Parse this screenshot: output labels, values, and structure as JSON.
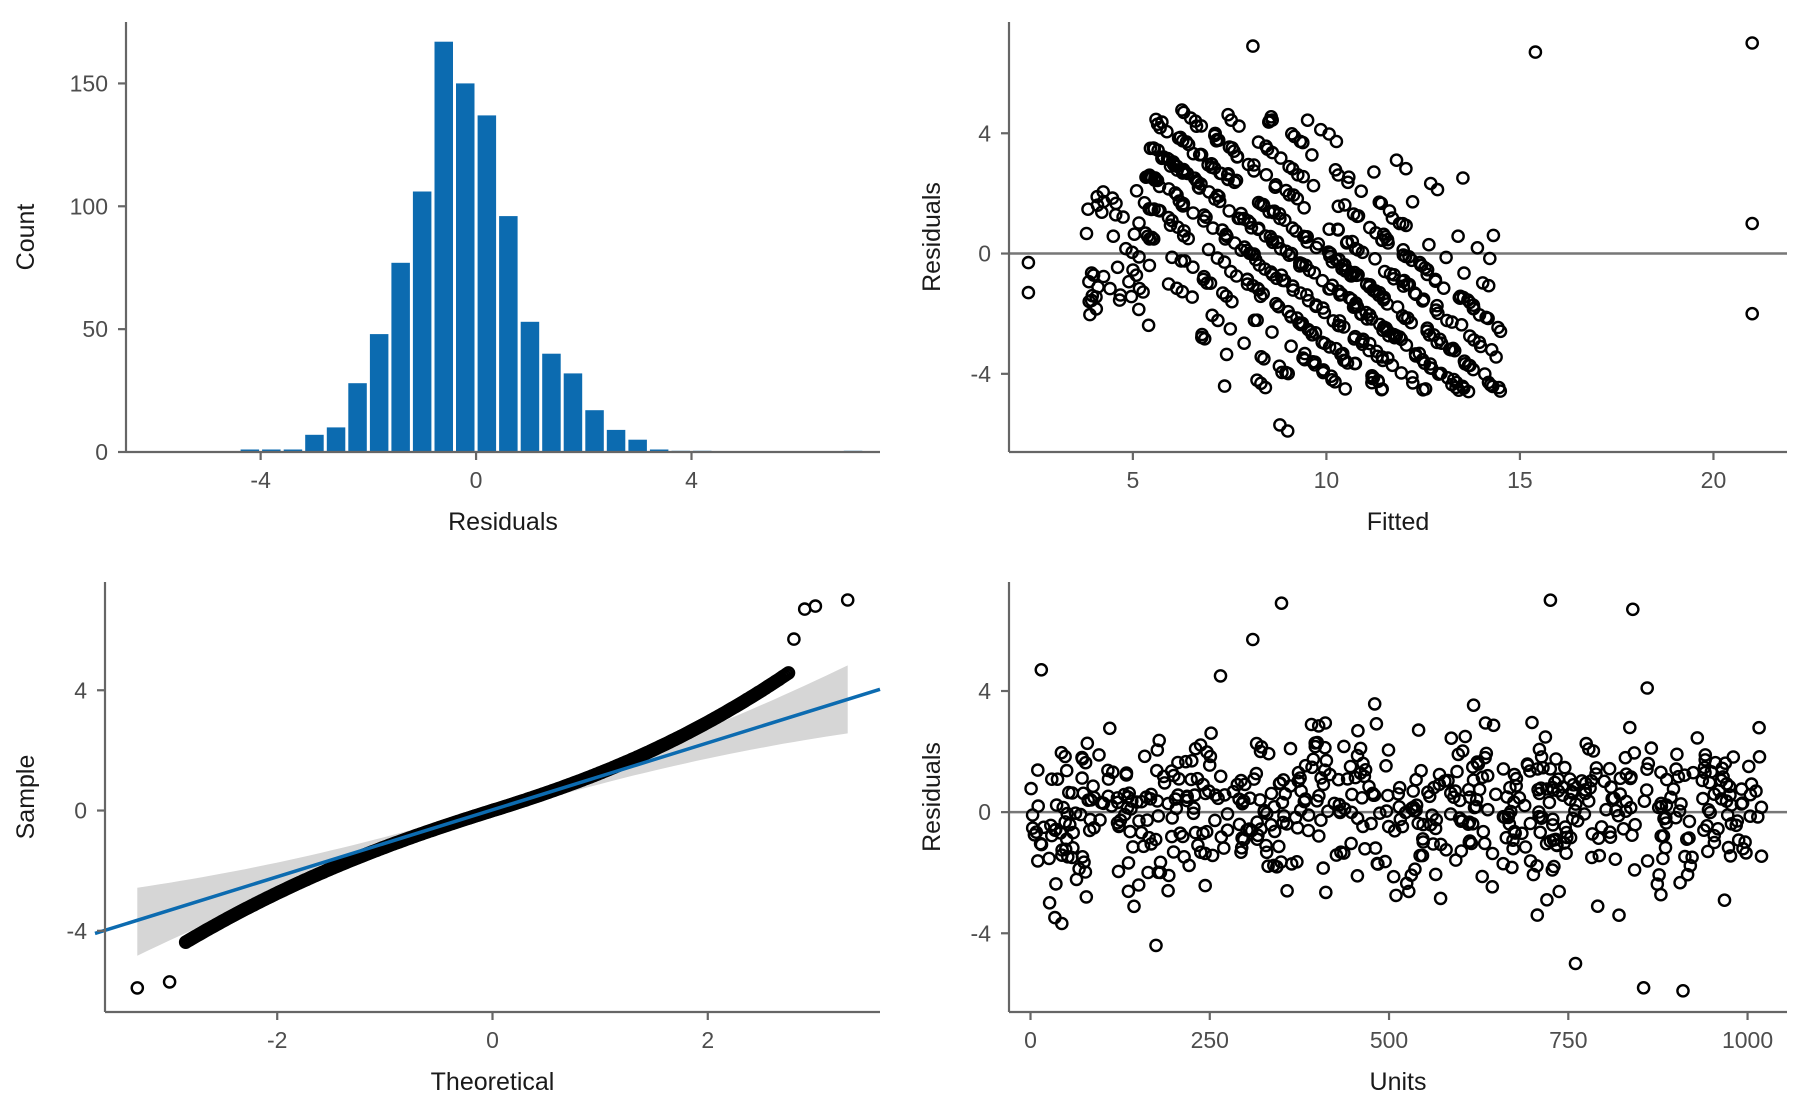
{
  "colors": {
    "bar": "#0c6bb0",
    "fit_line": "#0c6bb0",
    "band": "#d6d6d6",
    "ref_line": "#777777",
    "points": "#000000"
  },
  "chart_data": [
    {
      "id": "histogram",
      "type": "bar",
      "xlabel": "Residuals",
      "ylabel": "Count",
      "xlim": [
        -6.5,
        7.5
      ],
      "ylim": [
        0,
        175
      ],
      "xticks": [
        -4,
        0,
        4
      ],
      "yticks": [
        0,
        50,
        100,
        150
      ],
      "bin_width": 0.4,
      "bins": [
        {
          "x": -4.4,
          "count": 1
        },
        {
          "x": -4.0,
          "count": 1
        },
        {
          "x": -3.6,
          "count": 1
        },
        {
          "x": -3.2,
          "count": 7
        },
        {
          "x": -2.8,
          "count": 10
        },
        {
          "x": -2.4,
          "count": 28
        },
        {
          "x": -2.0,
          "count": 48
        },
        {
          "x": -1.6,
          "count": 77
        },
        {
          "x": -1.2,
          "count": 106
        },
        {
          "x": -0.8,
          "count": 167
        },
        {
          "x": -0.4,
          "count": 150
        },
        {
          "x": 0.0,
          "count": 137
        },
        {
          "x": 0.4,
          "count": 96
        },
        {
          "x": 0.8,
          "count": 53
        },
        {
          "x": 1.2,
          "count": 40
        },
        {
          "x": 1.6,
          "count": 32
        },
        {
          "x": 2.0,
          "count": 17
        },
        {
          "x": 2.4,
          "count": 9
        },
        {
          "x": 2.8,
          "count": 5
        },
        {
          "x": 3.2,
          "count": 1
        },
        {
          "x": 3.6,
          "count": 0.5
        },
        {
          "x": 4.0,
          "count": 0.5
        },
        {
          "x": 6.8,
          "count": 0.5
        }
      ]
    },
    {
      "id": "residuals-vs-fitted",
      "type": "scatter",
      "xlabel": "Fitted",
      "ylabel": "Residuals",
      "xlim": [
        1.8,
        21.9
      ],
      "ylim": [
        -6.6,
        7.7
      ],
      "xticks": [
        5,
        10,
        15,
        20
      ],
      "yticks": [
        -4,
        0,
        4
      ],
      "reference_line_y": 0,
      "n": 1000,
      "fitted_range": [
        2.3,
        21.0
      ],
      "notable_points": [
        {
          "x": 8.1,
          "y": 6.9
        },
        {
          "x": 15.4,
          "y": 6.7
        },
        {
          "x": 21.0,
          "y": 7.0
        },
        {
          "x": 21.0,
          "y": 1.0
        },
        {
          "x": 21.0,
          "y": -2.0
        },
        {
          "x": 8.8,
          "y": -5.7
        },
        {
          "x": 9.0,
          "y": -5.9
        },
        {
          "x": 2.3,
          "y": -0.3
        },
        {
          "x": 2.3,
          "y": -1.3
        }
      ]
    },
    {
      "id": "normal-qq",
      "type": "scatter",
      "xlabel": "Theoretical",
      "ylabel": "Sample",
      "xlim": [
        -3.6,
        3.6
      ],
      "ylim": [
        -6.7,
        7.6
      ],
      "xticks": [
        -2,
        0,
        2
      ],
      "yticks": [
        -4,
        0,
        4
      ],
      "n": 1000,
      "qq_line": {
        "intercept": 0.0,
        "slope": 1.12
      },
      "confidence_band": true,
      "tail_points": [
        {
          "x": -3.3,
          "y": -5.9
        },
        {
          "x": -3.0,
          "y": -5.7
        },
        {
          "x": 2.8,
          "y": 5.7
        },
        {
          "x": 2.9,
          "y": 6.7
        },
        {
          "x": 3.0,
          "y": 6.8
        },
        {
          "x": 3.3,
          "y": 7.0
        }
      ]
    },
    {
      "id": "residuals-vs-units",
      "type": "scatter",
      "xlabel": "Units",
      "ylabel": "Residuals",
      "xlim": [
        -30,
        1055
      ],
      "ylim": [
        -6.6,
        7.6
      ],
      "xticks": [
        0,
        250,
        500,
        750,
        1000
      ],
      "yticks": [
        -4,
        0,
        4
      ],
      "reference_line_y": 0,
      "n": 1000,
      "notable_points": [
        {
          "x": 15,
          "y": 4.7
        },
        {
          "x": 265,
          "y": 4.5
        },
        {
          "x": 310,
          "y": 5.7
        },
        {
          "x": 350,
          "y": 6.9
        },
        {
          "x": 725,
          "y": 7.0
        },
        {
          "x": 840,
          "y": 6.7
        },
        {
          "x": 855,
          "y": -5.8
        },
        {
          "x": 910,
          "y": -5.9
        },
        {
          "x": 760,
          "y": -5.0
        },
        {
          "x": 175,
          "y": -4.4
        },
        {
          "x": 860,
          "y": 4.1
        }
      ]
    }
  ]
}
